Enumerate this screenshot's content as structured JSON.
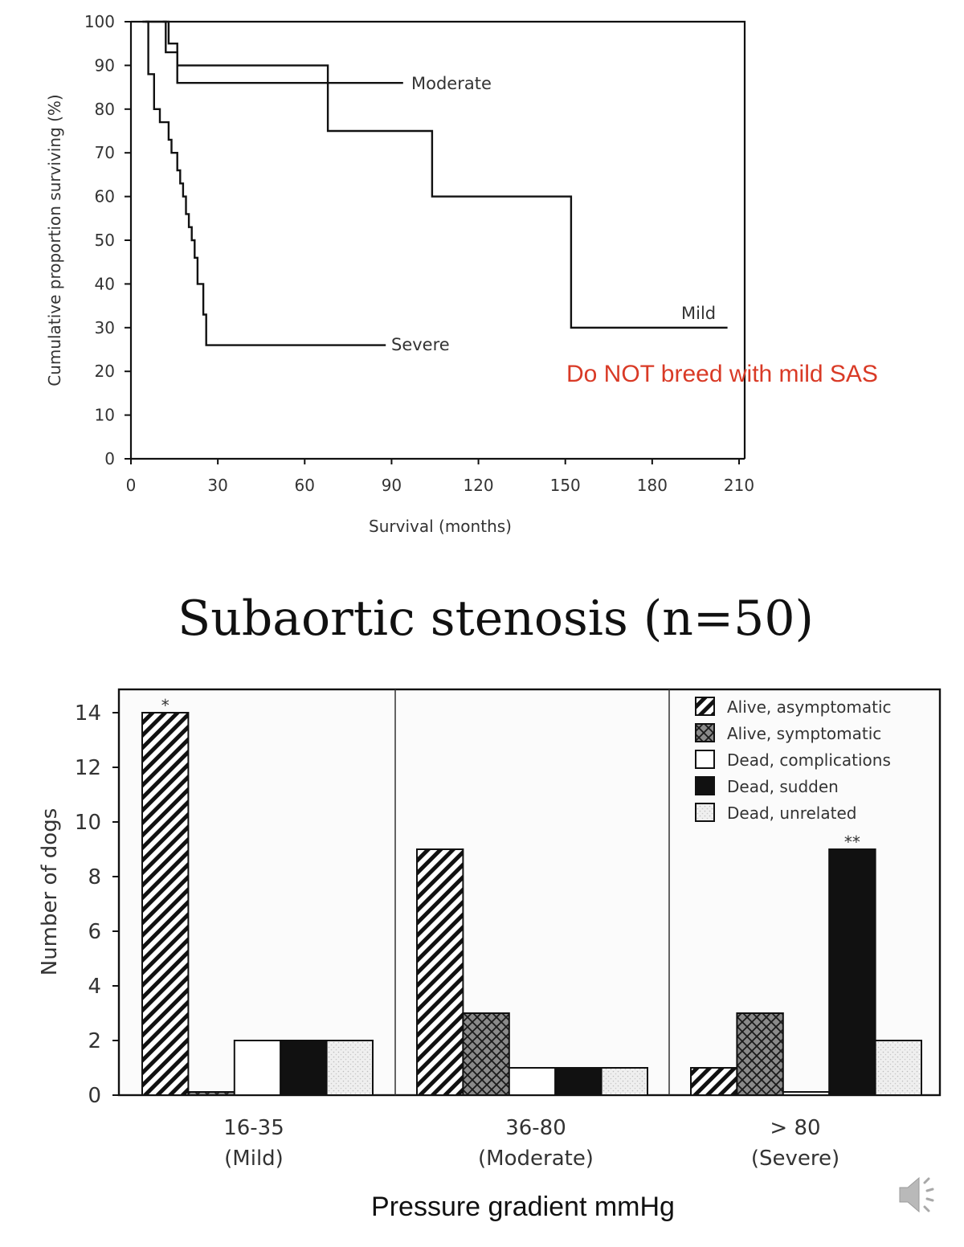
{
  "page_title": "Subaortic stenosis (n=50)",
  "note": "Do NOT breed with mild SAS",
  "icons": {
    "speaker": "speaker-icon"
  },
  "colors": {
    "note": "#d93a26"
  },
  "chart_data": [
    {
      "type": "line",
      "xlabel": "Survival (months)",
      "ylabel": "Cumulative proportion surviving (%)",
      "xlim": [
        0,
        210
      ],
      "ylim": [
        0,
        100
      ],
      "xticks": [
        0,
        30,
        60,
        90,
        120,
        150,
        180,
        210
      ],
      "yticks": [
        0,
        10,
        20,
        30,
        40,
        50,
        60,
        70,
        80,
        90,
        100
      ],
      "series": [
        {
          "name": "Moderate",
          "step": true,
          "x": [
            4,
            12,
            12,
            16,
            16,
            94
          ],
          "y": [
            100,
            100,
            93,
            93,
            86,
            86
          ]
        },
        {
          "name": "Mild",
          "step": true,
          "x": [
            11,
            13,
            13,
            16,
            16,
            68,
            68,
            104,
            104,
            152,
            152,
            206
          ],
          "y": [
            100,
            100,
            95,
            95,
            90,
            90,
            75,
            75,
            60,
            60,
            30,
            30
          ]
        },
        {
          "name": "Severe",
          "step": true,
          "x": [
            5,
            6,
            6,
            8,
            8,
            10,
            10,
            13,
            13,
            14,
            14,
            16,
            16,
            17,
            17,
            18,
            18,
            19,
            19,
            20,
            20,
            21,
            21,
            22,
            22,
            23,
            23,
            25,
            25,
            26,
            26,
            88
          ],
          "y": [
            100,
            100,
            88,
            88,
            80,
            80,
            77,
            77,
            73,
            73,
            70,
            70,
            66,
            66,
            63,
            63,
            60,
            60,
            56,
            56,
            53,
            53,
            50,
            50,
            46,
            46,
            40,
            40,
            33,
            33,
            26,
            26
          ]
        }
      ],
      "annotation": "Do NOT breed with mild SAS"
    },
    {
      "type": "bar",
      "xlabel": "Pressure gradient mmHg",
      "ylabel": "Number of dogs",
      "ylim": [
        0,
        15
      ],
      "yticks": [
        0,
        2,
        4,
        6,
        8,
        10,
        12,
        14
      ],
      "categories": [
        {
          "range": "16-35",
          "group": "(Mild)"
        },
        {
          "range": "36-80",
          "group": "(Moderate)"
        },
        {
          "range": "> 80",
          "group": "(Severe)"
        }
      ],
      "series": [
        {
          "name": "Alive, asymptomatic",
          "fill": "hatch-diag",
          "values": [
            14,
            9,
            1
          ]
        },
        {
          "name": "Alive, symptomatic",
          "fill": "cross-hatch",
          "values": [
            0,
            3,
            3
          ]
        },
        {
          "name": "Dead, complications",
          "fill": "white",
          "values": [
            2,
            1,
            0
          ]
        },
        {
          "name": "Dead, sudden",
          "fill": "black",
          "values": [
            2,
            1,
            9
          ]
        },
        {
          "name": "Dead, unrelated",
          "fill": "stipple",
          "values": [
            2,
            1,
            2
          ]
        }
      ],
      "marks": [
        {
          "category": 0,
          "series": 0,
          "text": "*"
        },
        {
          "category": 2,
          "series": 3,
          "text": "**"
        }
      ]
    }
  ]
}
